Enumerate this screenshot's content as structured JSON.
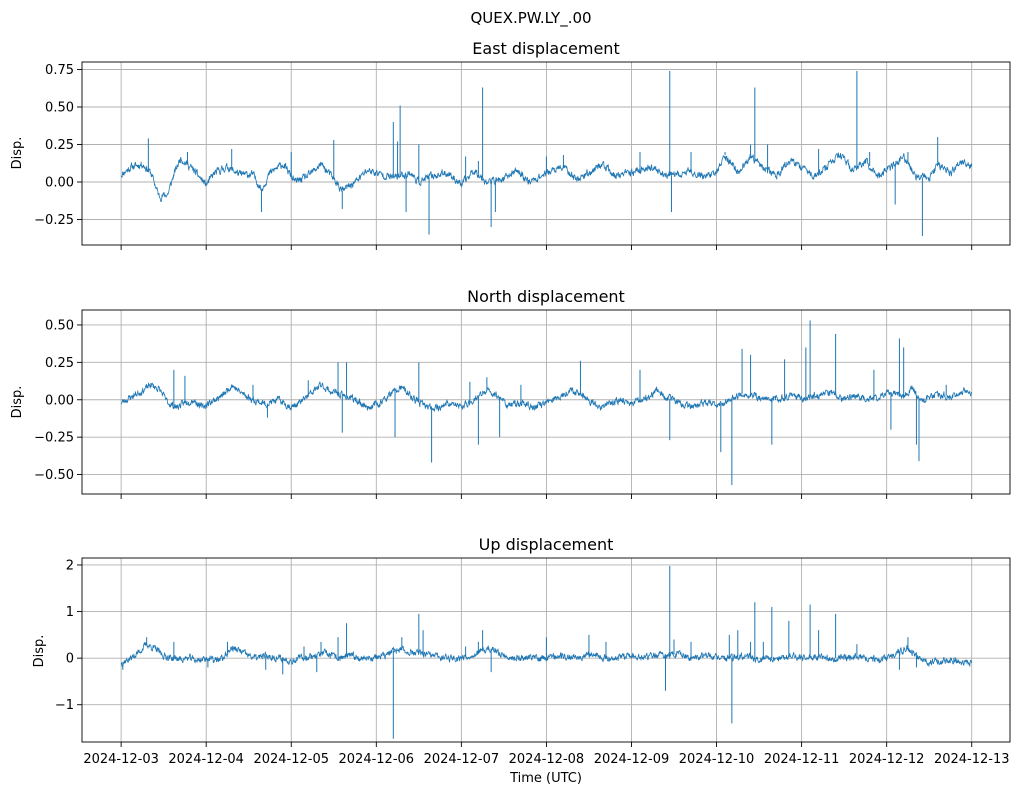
{
  "figure": {
    "suptitle": "QUEX.PW.LY_.00",
    "series_color": "#1f77b4"
  },
  "chart_data": [
    {
      "type": "line",
      "title": "East displacement",
      "xlabel": "",
      "ylabel": "Disp.",
      "xlim": [
        "2024-12-02T12:00",
        "2024-12-13T06:00"
      ],
      "ylim": [
        -0.42,
        0.8
      ],
      "yticks": [
        0.75,
        0.5,
        0.25,
        0.0,
        -0.25
      ],
      "ytick_labels": [
        "0.75",
        "0.50",
        "0.25",
        "0.00",
        "−0.25"
      ],
      "grid": true,
      "baseline_points": [
        [
          0.0,
          0.05
        ],
        [
          0.12,
          0.1
        ],
        [
          0.25,
          0.12
        ],
        [
          0.35,
          0.06
        ],
        [
          0.45,
          -0.1
        ],
        [
          0.55,
          -0.08
        ],
        [
          0.62,
          0.05
        ],
        [
          0.7,
          0.16
        ],
        [
          0.85,
          0.08
        ],
        [
          1.0,
          -0.02
        ],
        [
          1.1,
          0.06
        ],
        [
          1.25,
          0.1
        ],
        [
          1.4,
          0.05
        ],
        [
          1.55,
          0.05
        ],
        [
          1.65,
          -0.05
        ],
        [
          1.75,
          0.06
        ],
        [
          1.9,
          0.12
        ],
        [
          2.05,
          0.0
        ],
        [
          2.2,
          0.04
        ],
        [
          2.35,
          0.12
        ],
        [
          2.5,
          0.02
        ],
        [
          2.6,
          -0.06
        ],
        [
          2.75,
          0.0
        ],
        [
          2.9,
          0.08
        ],
        [
          3.0,
          0.06
        ],
        [
          3.2,
          0.03
        ],
        [
          3.4,
          0.06
        ],
        [
          3.5,
          0.0
        ],
        [
          3.65,
          0.04
        ],
        [
          3.85,
          0.06
        ],
        [
          4.0,
          -0.02
        ],
        [
          4.15,
          0.08
        ],
        [
          4.3,
          0.0
        ],
        [
          4.5,
          0.02
        ],
        [
          4.65,
          0.08
        ],
        [
          4.8,
          0.0
        ],
        [
          5.0,
          0.06
        ],
        [
          5.2,
          0.1
        ],
        [
          5.35,
          0.02
        ],
        [
          5.5,
          0.06
        ],
        [
          5.65,
          0.12
        ],
        [
          5.8,
          0.04
        ],
        [
          6.0,
          0.06
        ],
        [
          6.2,
          0.1
        ],
        [
          6.35,
          0.06
        ],
        [
          6.5,
          0.04
        ],
        [
          6.7,
          0.07
        ],
        [
          6.85,
          0.04
        ],
        [
          7.0,
          0.06
        ],
        [
          7.1,
          0.18
        ],
        [
          7.25,
          0.06
        ],
        [
          7.4,
          0.16
        ],
        [
          7.55,
          0.1
        ],
        [
          7.7,
          0.04
        ],
        [
          7.85,
          0.14
        ],
        [
          8.0,
          0.1
        ],
        [
          8.15,
          0.04
        ],
        [
          8.3,
          0.1
        ],
        [
          8.45,
          0.18
        ],
        [
          8.6,
          0.08
        ],
        [
          8.75,
          0.14
        ],
        [
          8.9,
          0.04
        ],
        [
          9.05,
          0.1
        ],
        [
          9.2,
          0.16
        ],
        [
          9.35,
          0.04
        ],
        [
          9.5,
          0.02
        ],
        [
          9.6,
          0.12
        ],
        [
          9.75,
          0.06
        ],
        [
          9.9,
          0.14
        ],
        [
          10.0,
          0.1
        ]
      ],
      "noise": 0.015,
      "seed": 11,
      "spikes": [
        [
          0.32,
          0.29
        ],
        [
          0.78,
          0.2
        ],
        [
          1.3,
          0.22
        ],
        [
          1.65,
          -0.2
        ],
        [
          2.0,
          0.2
        ],
        [
          2.5,
          0.28
        ],
        [
          2.6,
          -0.18
        ],
        [
          3.2,
          0.4
        ],
        [
          3.25,
          0.27
        ],
        [
          3.28,
          0.51
        ],
        [
          3.35,
          -0.2
        ],
        [
          3.5,
          0.25
        ],
        [
          3.62,
          -0.35
        ],
        [
          4.05,
          0.17
        ],
        [
          4.2,
          0.14
        ],
        [
          4.25,
          0.63
        ],
        [
          4.35,
          -0.3
        ],
        [
          4.4,
          -0.2
        ],
        [
          5.0,
          0.17
        ],
        [
          5.2,
          0.18
        ],
        [
          6.1,
          0.2
        ],
        [
          6.45,
          0.74
        ],
        [
          6.47,
          -0.2
        ],
        [
          6.7,
          0.2
        ],
        [
          7.1,
          0.2
        ],
        [
          7.4,
          0.25
        ],
        [
          7.45,
          0.63
        ],
        [
          7.6,
          0.25
        ],
        [
          8.2,
          0.22
        ],
        [
          8.65,
          0.74
        ],
        [
          8.8,
          0.2
        ],
        [
          9.1,
          -0.15
        ],
        [
          9.25,
          0.2
        ],
        [
          9.42,
          -0.36
        ],
        [
          9.6,
          0.3
        ]
      ]
    },
    {
      "type": "line",
      "title": "North displacement",
      "xlabel": "",
      "ylabel": "Disp.",
      "xlim": [
        "2024-12-02T12:00",
        "2024-12-13T06:00"
      ],
      "ylim": [
        -0.63,
        0.6
      ],
      "yticks": [
        0.5,
        0.25,
        0.0,
        -0.25,
        -0.5
      ],
      "ytick_labels": [
        "0.50",
        "0.25",
        "0.00",
        "−0.25",
        "−0.50"
      ],
      "grid": true,
      "baseline_points": [
        [
          0.0,
          -0.02
        ],
        [
          0.15,
          0.03
        ],
        [
          0.25,
          0.06
        ],
        [
          0.35,
          0.1
        ],
        [
          0.45,
          0.07
        ],
        [
          0.55,
          -0.02
        ],
        [
          0.65,
          -0.05
        ],
        [
          0.75,
          -0.02
        ],
        [
          0.85,
          0.0
        ],
        [
          0.95,
          -0.05
        ],
        [
          1.1,
          0.0
        ],
        [
          1.2,
          0.03
        ],
        [
          1.3,
          0.1
        ],
        [
          1.4,
          0.05
        ],
        [
          1.55,
          0.0
        ],
        [
          1.7,
          -0.03
        ],
        [
          1.85,
          0.0
        ],
        [
          2.0,
          -0.05
        ],
        [
          2.1,
          -0.02
        ],
        [
          2.25,
          0.05
        ],
        [
          2.35,
          0.1
        ],
        [
          2.45,
          0.06
        ],
        [
          2.6,
          0.03
        ],
        [
          2.75,
          0.0
        ],
        [
          2.9,
          -0.05
        ],
        [
          3.05,
          -0.02
        ],
        [
          3.2,
          0.05
        ],
        [
          3.3,
          0.08
        ],
        [
          3.45,
          0.0
        ],
        [
          3.6,
          -0.05
        ],
        [
          3.75,
          -0.05
        ],
        [
          3.85,
          -0.02
        ],
        [
          4.0,
          -0.05
        ],
        [
          4.15,
          0.0
        ],
        [
          4.3,
          0.06
        ],
        [
          4.45,
          0.02
        ],
        [
          4.55,
          -0.04
        ],
        [
          4.7,
          -0.02
        ],
        [
          4.85,
          -0.05
        ],
        [
          5.0,
          -0.02
        ],
        [
          5.15,
          0.02
        ],
        [
          5.3,
          0.07
        ],
        [
          5.45,
          0.02
        ],
        [
          5.6,
          -0.05
        ],
        [
          5.75,
          -0.02
        ],
        [
          5.9,
          0.0
        ],
        [
          6.0,
          -0.03
        ],
        [
          6.15,
          0.0
        ],
        [
          6.3,
          0.06
        ],
        [
          6.4,
          0.02
        ],
        [
          6.55,
          -0.02
        ],
        [
          6.7,
          -0.04
        ],
        [
          6.85,
          -0.02
        ],
        [
          7.0,
          -0.04
        ],
        [
          7.15,
          0.0
        ],
        [
          7.3,
          0.04
        ],
        [
          7.45,
          0.02
        ],
        [
          7.6,
          0.0
        ],
        [
          7.75,
          0.01
        ],
        [
          7.9,
          0.03
        ],
        [
          8.05,
          0.01
        ],
        [
          8.2,
          0.03
        ],
        [
          8.35,
          0.05
        ],
        [
          8.5,
          0.0
        ],
        [
          8.65,
          0.03
        ],
        [
          8.8,
          0.0
        ],
        [
          8.95,
          0.03
        ],
        [
          9.1,
          0.05
        ],
        [
          9.2,
          0.02
        ],
        [
          9.3,
          0.08
        ],
        [
          9.4,
          -0.02
        ],
        [
          9.5,
          0.02
        ],
        [
          9.6,
          0.04
        ],
        [
          9.75,
          0.02
        ],
        [
          9.9,
          0.06
        ],
        [
          10.0,
          0.05
        ]
      ],
      "noise": 0.014,
      "seed": 23,
      "spikes": [
        [
          0.62,
          0.2
        ],
        [
          0.75,
          0.16
        ],
        [
          1.55,
          0.1
        ],
        [
          1.72,
          -0.12
        ],
        [
          2.2,
          0.13
        ],
        [
          2.55,
          0.25
        ],
        [
          2.6,
          -0.22
        ],
        [
          2.65,
          0.25
        ],
        [
          3.22,
          -0.25
        ],
        [
          3.5,
          0.25
        ],
        [
          3.65,
          -0.42
        ],
        [
          4.1,
          0.12
        ],
        [
          4.2,
          -0.3
        ],
        [
          4.3,
          0.15
        ],
        [
          4.45,
          -0.25
        ],
        [
          4.7,
          0.1
        ],
        [
          5.4,
          0.26
        ],
        [
          6.1,
          0.2
        ],
        [
          6.45,
          -0.27
        ],
        [
          7.05,
          -0.35
        ],
        [
          7.18,
          -0.57
        ],
        [
          7.3,
          0.34
        ],
        [
          7.4,
          0.3
        ],
        [
          7.65,
          -0.3
        ],
        [
          7.8,
          0.27
        ],
        [
          8.05,
          0.35
        ],
        [
          8.1,
          0.53
        ],
        [
          8.4,
          0.44
        ],
        [
          8.85,
          0.2
        ],
        [
          9.05,
          -0.2
        ],
        [
          9.15,
          0.41
        ],
        [
          9.2,
          0.35
        ],
        [
          9.35,
          -0.3
        ],
        [
          9.38,
          -0.41
        ],
        [
          9.7,
          0.1
        ]
      ]
    },
    {
      "type": "line",
      "title": "Up displacement",
      "xlabel": "Time (UTC)",
      "ylabel": "Disp.",
      "xlim": [
        "2024-12-02T12:00",
        "2024-12-13T06:00"
      ],
      "ylim": [
        -1.8,
        2.15
      ],
      "yticks": [
        2,
        1,
        0,
        -1
      ],
      "ytick_labels": [
        "2",
        "1",
        "0",
        "−1"
      ],
      "grid": true,
      "baseline_points": [
        [
          0.0,
          -0.1
        ],
        [
          0.12,
          0.0
        ],
        [
          0.22,
          0.15
        ],
        [
          0.3,
          0.3
        ],
        [
          0.4,
          0.2
        ],
        [
          0.5,
          0.05
        ],
        [
          0.6,
          0.0
        ],
        [
          0.7,
          -0.02
        ],
        [
          0.8,
          0.0
        ],
        [
          0.9,
          -0.05
        ],
        [
          1.0,
          0.0
        ],
        [
          1.1,
          -0.05
        ],
        [
          1.2,
          0.0
        ],
        [
          1.3,
          0.22
        ],
        [
          1.4,
          0.15
        ],
        [
          1.5,
          0.05
        ],
        [
          1.6,
          0.0
        ],
        [
          1.7,
          0.05
        ],
        [
          1.85,
          0.0
        ],
        [
          2.0,
          -0.05
        ],
        [
          2.1,
          0.0
        ],
        [
          2.25,
          0.05
        ],
        [
          2.4,
          0.1
        ],
        [
          2.55,
          0.0
        ],
        [
          2.7,
          0.05
        ],
        [
          2.85,
          0.0
        ],
        [
          3.0,
          0.02
        ],
        [
          3.1,
          0.05
        ],
        [
          3.25,
          0.2
        ],
        [
          3.35,
          0.15
        ],
        [
          3.5,
          0.1
        ],
        [
          3.65,
          0.05
        ],
        [
          3.8,
          0.02
        ],
        [
          3.95,
          0.0
        ],
        [
          4.1,
          0.05
        ],
        [
          4.25,
          0.15
        ],
        [
          4.35,
          0.2
        ],
        [
          4.5,
          0.05
        ],
        [
          4.65,
          0.0
        ],
        [
          4.8,
          0.02
        ],
        [
          4.95,
          0.0
        ],
        [
          5.1,
          0.05
        ],
        [
          5.25,
          0.02
        ],
        [
          5.4,
          0.05
        ],
        [
          5.55,
          0.1
        ],
        [
          5.7,
          0.0
        ],
        [
          5.85,
          0.02
        ],
        [
          6.0,
          0.05
        ],
        [
          6.15,
          0.0
        ],
        [
          6.3,
          0.08
        ],
        [
          6.45,
          0.05
        ],
        [
          6.55,
          0.1
        ],
        [
          6.7,
          0.0
        ],
        [
          6.85,
          0.05
        ],
        [
          7.0,
          0.02
        ],
        [
          7.15,
          0.0
        ],
        [
          7.3,
          0.05
        ],
        [
          7.45,
          -0.02
        ],
        [
          7.6,
          0.02
        ],
        [
          7.75,
          0.0
        ],
        [
          7.9,
          0.05
        ],
        [
          8.05,
          0.0
        ],
        [
          8.2,
          0.02
        ],
        [
          8.35,
          0.0
        ],
        [
          8.5,
          0.0
        ],
        [
          8.65,
          0.05
        ],
        [
          8.8,
          0.0
        ],
        [
          8.95,
          -0.05
        ],
        [
          9.1,
          0.1
        ],
        [
          9.25,
          0.2
        ],
        [
          9.35,
          0.05
        ],
        [
          9.5,
          -0.1
        ],
        [
          9.65,
          -0.05
        ],
        [
          9.8,
          -0.05
        ],
        [
          9.9,
          -0.1
        ],
        [
          10.0,
          -0.1
        ]
      ],
      "noise": 0.045,
      "seed": 37,
      "spikes": [
        [
          0.02,
          -0.25
        ],
        [
          0.3,
          0.45
        ],
        [
          0.62,
          0.35
        ],
        [
          1.02,
          -0.2
        ],
        [
          1.25,
          0.35
        ],
        [
          1.7,
          -0.25
        ],
        [
          1.9,
          -0.35
        ],
        [
          2.15,
          0.25
        ],
        [
          2.3,
          -0.3
        ],
        [
          2.35,
          0.35
        ],
        [
          2.55,
          0.45
        ],
        [
          2.65,
          0.75
        ],
        [
          3.2,
          -1.73
        ],
        [
          3.3,
          0.45
        ],
        [
          3.5,
          0.95
        ],
        [
          3.55,
          0.6
        ],
        [
          4.05,
          0.25
        ],
        [
          4.2,
          0.35
        ],
        [
          4.25,
          0.6
        ],
        [
          4.35,
          -0.3
        ],
        [
          5.0,
          0.45
        ],
        [
          5.5,
          0.5
        ],
        [
          5.7,
          0.35
        ],
        [
          6.4,
          -0.7
        ],
        [
          6.45,
          1.98
        ],
        [
          6.5,
          0.4
        ],
        [
          6.7,
          0.35
        ],
        [
          7.15,
          0.5
        ],
        [
          7.18,
          -1.4
        ],
        [
          7.25,
          0.6
        ],
        [
          7.4,
          0.35
        ],
        [
          7.45,
          1.2
        ],
        [
          7.55,
          0.35
        ],
        [
          7.65,
          1.1
        ],
        [
          7.85,
          0.8
        ],
        [
          8.1,
          1.15
        ],
        [
          8.2,
          0.6
        ],
        [
          8.4,
          0.95
        ],
        [
          8.65,
          0.3
        ],
        [
          9.15,
          -0.25
        ],
        [
          9.25,
          0.45
        ],
        [
          9.35,
          -0.2
        ]
      ]
    }
  ],
  "x_axis": {
    "tick_labels": [
      "2024-12-03",
      "2024-12-04",
      "2024-12-05",
      "2024-12-06",
      "2024-12-07",
      "2024-12-08",
      "2024-12-09",
      "2024-12-10",
      "2024-12-11",
      "2024-12-12",
      "2024-12-13"
    ],
    "tick_days": [
      0,
      1,
      2,
      3,
      4,
      5,
      6,
      7,
      8,
      9,
      10
    ],
    "xlim_days": [
      -0.46,
      10.45
    ]
  }
}
